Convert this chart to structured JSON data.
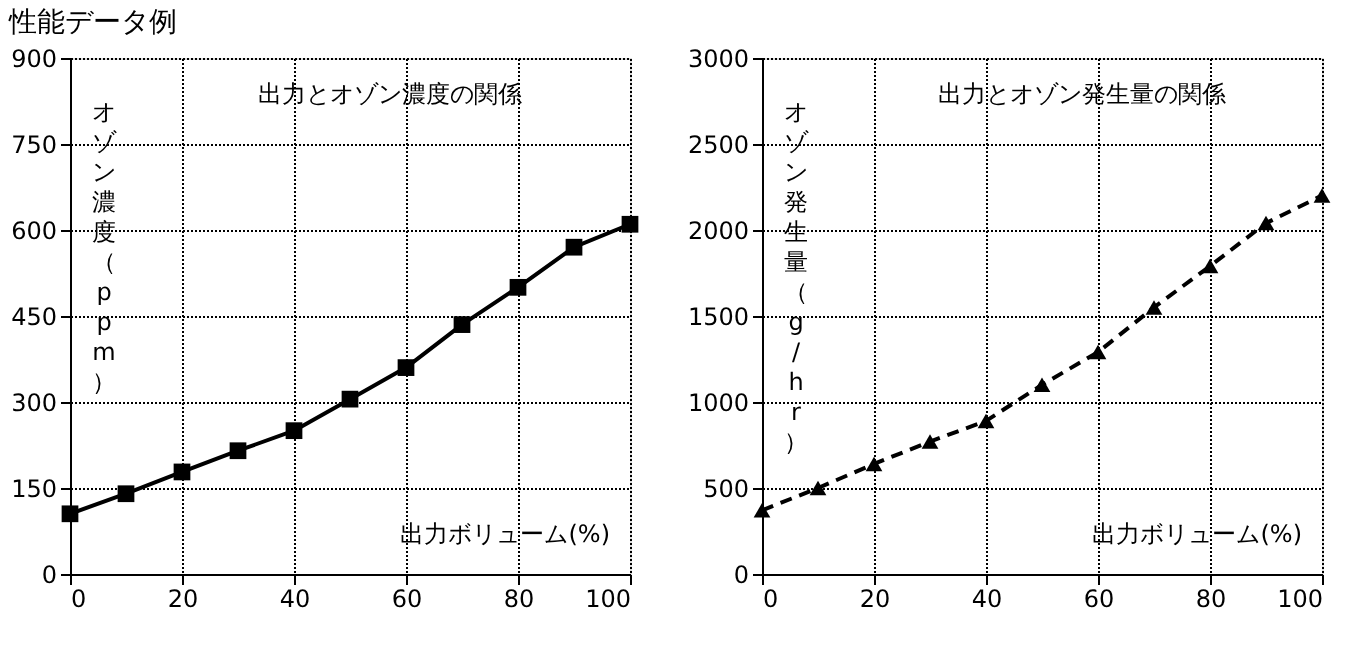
{
  "chart_data": [
    {
      "type": "line",
      "title": "性能データ例",
      "subtitle": "出力とオゾン濃度の関係",
      "xlabel": "出力ボリューム(%)",
      "ylabel": "オゾン濃度（ppm）",
      "x": [
        0,
        10,
        20,
        30,
        40,
        50,
        60,
        70,
        80,
        90,
        100
      ],
      "series": [
        {
          "color": "#000000",
          "marker": "square",
          "line_style": "solid",
          "values": [
            105,
            140,
            178,
            215,
            250,
            305,
            360,
            435,
            500,
            570,
            610
          ]
        }
      ],
      "xlim": [
        0,
        100
      ],
      "xticks": [
        0,
        20,
        40,
        60,
        80,
        100
      ],
      "ylim": [
        0,
        900
      ],
      "yticks": [
        0,
        150,
        300,
        450,
        600,
        750,
        900
      ],
      "grid": true
    },
    {
      "type": "line",
      "subtitle": "出力とオゾン発生量の関係",
      "xlabel": "出力ボリューム(%)",
      "ylabel": "オゾン発生量（g/hr）",
      "x": [
        0,
        10,
        20,
        30,
        40,
        50,
        60,
        70,
        80,
        90,
        100
      ],
      "series": [
        {
          "color": "#000000",
          "marker": "triangle",
          "line_style": "dashed",
          "values": [
            370,
            500,
            640,
            770,
            890,
            1100,
            1290,
            1550,
            1790,
            2040,
            2200
          ]
        }
      ],
      "xlim": [
        0,
        100
      ],
      "xticks": [
        0,
        20,
        40,
        60,
        80,
        100
      ],
      "ylim": [
        0,
        3000
      ],
      "yticks": [
        0,
        500,
        1000,
        1500,
        2000,
        2500,
        3000
      ],
      "grid": true
    }
  ]
}
